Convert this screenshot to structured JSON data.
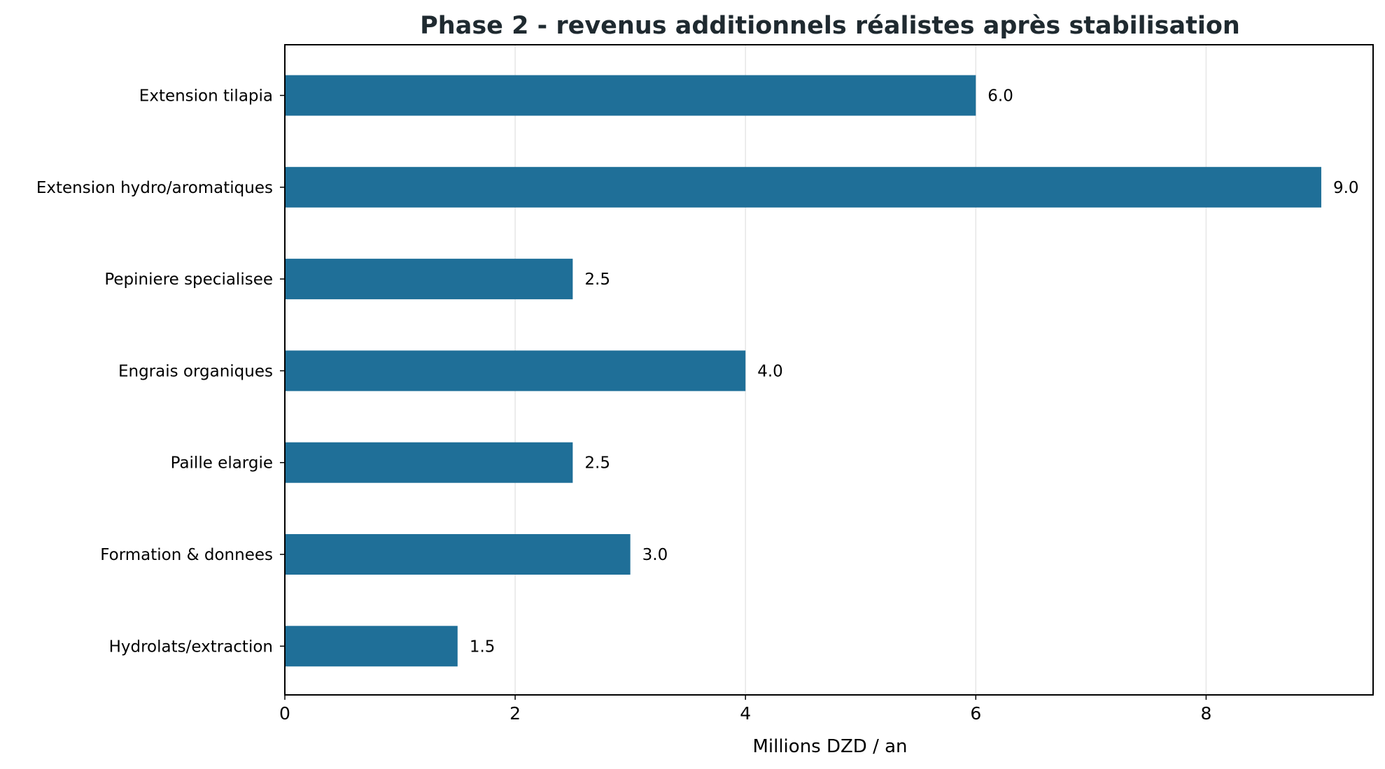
{
  "chart_data": {
    "type": "bar",
    "orientation": "horizontal",
    "title": "Phase 2 - revenus additionnels réalistes après stabilisation",
    "xlabel": "Millions DZD / an",
    "ylabel": "",
    "categories": [
      "Extension tilapia",
      "Extension hydro/aromatiques",
      "Pepiniere specialisee",
      "Engrais organiques",
      "Paille elargie",
      "Formation & donnees",
      "Hydrolats/extraction"
    ],
    "values": [
      6.0,
      9.0,
      2.5,
      4.0,
      2.5,
      3.0,
      1.5
    ],
    "value_labels": [
      "6.0",
      "9.0",
      "2.5",
      "4.0",
      "2.5",
      "3.0",
      "1.5"
    ],
    "xlim": [
      0,
      9.45
    ],
    "xticks": [
      0,
      2,
      4,
      6,
      8
    ],
    "xtick_labels": [
      "0",
      "2",
      "4",
      "6",
      "8"
    ],
    "grid": "vertical",
    "legend": "none",
    "bar_color": "#1f6f98",
    "title_color": "#1f2a30",
    "grid_color": "#e6e6e6"
  }
}
